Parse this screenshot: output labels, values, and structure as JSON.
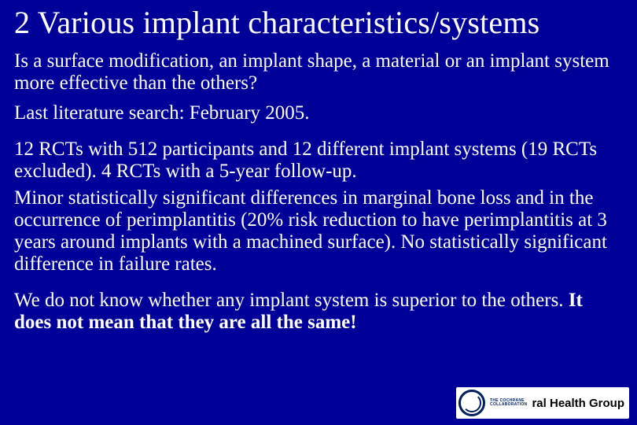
{
  "slide": {
    "background_color": "#000099",
    "text_color": "#ffffff",
    "font_family": "Times New Roman",
    "title": "2 Various implant characteristics/systems",
    "title_fontsize": 40,
    "body_fontsize": 25,
    "p1": "Is a surface modification, an implant shape, a material or an implant system more effective than the others?",
    "p2": "Last literature search: February 2005.",
    "p3": "12 RCTs with 512 participants and 12 different implant systems (19 RCTs excluded). 4 RCTs with a 5-year follow-up.",
    "p4": "Minor statistically significant differences in marginal bone loss and in the occurrence of perimplantitis (20% risk reduction to have perimplantitis at 3 years around implants with a machined surface). No statistically significant difference in failure rates.",
    "p5_prefix": "We do not know whether any implant system is superior to the others. ",
    "p5_bold": "It does not mean that they are all the same!"
  },
  "footer": {
    "logo_small_line1": "THE COCHRANE",
    "logo_small_line2": "COLLABORATION",
    "group_text": "ral Health Group",
    "logo_ring_color": "#001f5c",
    "group_text_color": "#000000",
    "background_color": "#ffffff"
  }
}
